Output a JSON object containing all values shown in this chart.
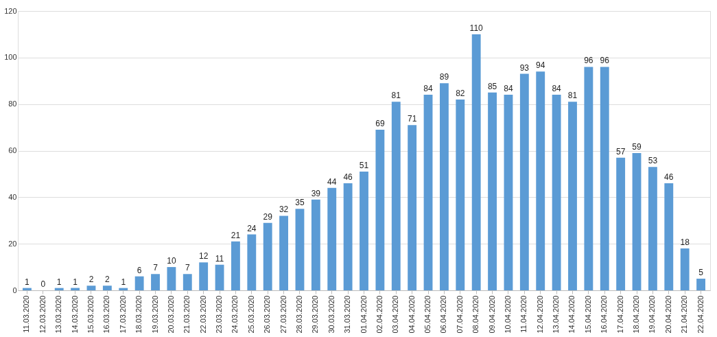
{
  "chart_data": {
    "type": "bar",
    "categories": [
      "11.03.2020",
      "12.03.2020",
      "13.03.2020",
      "14.03.2020",
      "15.03.2020",
      "16.03.2020",
      "17.03.2020",
      "18.03.2020",
      "19.03.2020",
      "20.03.2020",
      "21.03.2020",
      "22.03.2020",
      "23.03.2020",
      "24.03.2020",
      "25.03.2020",
      "26.03.2020",
      "27.03.2020",
      "28.03.2020",
      "29.03.2020",
      "30.03.2020",
      "31.03.2020",
      "01.04.2020",
      "02.04.2020",
      "03.04.2020",
      "04.04.2020",
      "05.04.2020",
      "06.04.2020",
      "07.04.2020",
      "08.04.2020",
      "09.04.2020",
      "10.04.2020",
      "11.04.2020",
      "12.04.2020",
      "13.04.2020",
      "14.04.2020",
      "15.04.2020",
      "16.04.2020",
      "17.04.2020",
      "18.04.2020",
      "19.04.2020",
      "20.04.2020",
      "21.04.2020",
      "22.04.2020"
    ],
    "values": [
      1,
      0,
      1,
      1,
      2,
      2,
      1,
      6,
      7,
      10,
      7,
      12,
      11,
      21,
      24,
      29,
      32,
      35,
      39,
      44,
      46,
      51,
      69,
      81,
      71,
      84,
      89,
      82,
      110,
      85,
      84,
      93,
      94,
      84,
      81,
      96,
      96,
      57,
      59,
      53,
      46,
      18,
      5
    ],
    "color": "#5b9bd5",
    "ylim": [
      0,
      120
    ],
    "yticks": [
      0,
      20,
      40,
      60,
      80,
      100,
      120
    ],
    "grid": "y",
    "data_labels": true
  }
}
